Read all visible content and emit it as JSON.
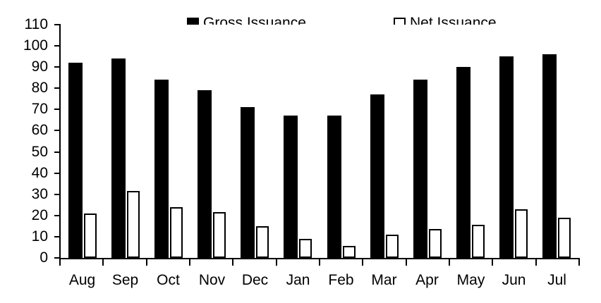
{
  "chart_data": {
    "type": "bar",
    "title": "",
    "xlabel": "",
    "ylabel": "",
    "categories": [
      "Aug",
      "Sep",
      "Oct",
      "Nov",
      "Dec",
      "Jan",
      "Feb",
      "Mar",
      "Apr",
      "May",
      "Jun",
      "Jul"
    ],
    "series": [
      {
        "name": "Gross Issuance",
        "key": "gross",
        "style": "filled",
        "fill": "#000000",
        "stroke": "#000000",
        "values": [
          92,
          94,
          84,
          79,
          71,
          67,
          67,
          77,
          84,
          90,
          95,
          96
        ]
      },
      {
        "name": "Net Issuance",
        "key": "net",
        "style": "outline",
        "fill": "#ffffff",
        "stroke": "#000000",
        "values": [
          21,
          31.5,
          24,
          21.5,
          15,
          9,
          5.5,
          11,
          13.5,
          15.5,
          23,
          19
        ]
      }
    ],
    "ylim": [
      0,
      110
    ],
    "yticks": [
      0,
      10,
      20,
      30,
      40,
      50,
      60,
      70,
      80,
      90,
      100,
      110
    ],
    "grid": false,
    "legend_position": "top",
    "colors": {
      "background": "#ffffff",
      "axis": "#000000",
      "text": "#000000"
    }
  }
}
